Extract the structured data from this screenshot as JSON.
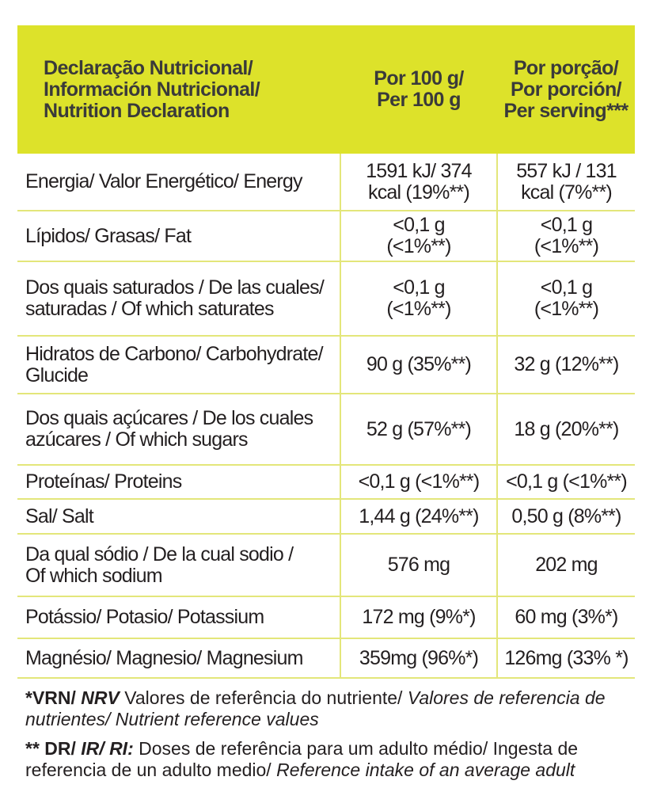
{
  "header": {
    "col1": [
      "Declaração Nutricional/",
      "Información Nutricional/",
      "Nutrition Declaration"
    ],
    "col2": [
      "Por 100 g/",
      "Per 100 g"
    ],
    "col3": [
      "Por porção/",
      "Por porción/",
      "Per serving***"
    ]
  },
  "rows": [
    {
      "label": [
        "Energia/ Valor Energético/ Energy"
      ],
      "per100": [
        "1591 kJ/ 374",
        "kcal (19%**)"
      ],
      "serving": [
        "557 kJ / 131",
        "kcal (7%**)"
      ]
    },
    {
      "label": [
        "Lípidos/ Grasas/ Fat"
      ],
      "per100": [
        "<0,1 g",
        "(<1%**)"
      ],
      "serving": [
        "<0,1 g",
        "(<1%**)"
      ]
    },
    {
      "label": [
        "Dos quais saturados / De las cuales/",
        "saturadas / Of which saturates"
      ],
      "per100": [
        "<0,1 g",
        "(<1%**)"
      ],
      "serving": [
        "<0,1 g",
        "(<1%**)"
      ]
    },
    {
      "label": [
        "Hidratos de Carbono/ Carbohydrate/",
        "Glucide"
      ],
      "per100": [
        "90 g (35%**)"
      ],
      "serving": [
        "32 g (12%**)"
      ]
    },
    {
      "label": [
        "Dos quais açúcares / De los cuales",
        "azúcares / Of which sugars"
      ],
      "per100": [
        "52 g (57%**)"
      ],
      "serving": [
        "18 g (20%**)"
      ]
    },
    {
      "label": [
        "Proteínas/ Proteins"
      ],
      "per100": [
        "<0,1 g (<1%**)"
      ],
      "serving": [
        "<0,1 g (<1%**)"
      ]
    },
    {
      "label": [
        "Sal/ Salt"
      ],
      "per100": [
        "1,44 g (24%**)"
      ],
      "serving": [
        "0,50 g (8%**)"
      ]
    },
    {
      "label": [
        "Da qual sódio / De la cual sodio /",
        "Of which sodium"
      ],
      "per100": [
        "576 mg"
      ],
      "serving": [
        "202 mg"
      ]
    },
    {
      "label": [
        "Potássio/ Potasio/ Potassium"
      ],
      "per100": [
        "172 mg (9%*)"
      ],
      "serving": [
        "60 mg (3%*)"
      ]
    },
    {
      "label": [
        "Magnésio/ Magnesio/ Magnesium"
      ],
      "per100": [
        "359mg (96%*)"
      ],
      "serving": [
        "126mg (33% *)"
      ]
    }
  ],
  "notes": {
    "vrn": {
      "key_a": "*VRN/",
      "key_b": "NRV",
      "text_a": "Valores de referência do nutriente/",
      "text_b": "Valores de referencia de nutrientes/ Nutrient reference values"
    },
    "dr": {
      "key_a": "** DR/",
      "key_b": "IR/ RI:",
      "text_a": "Doses de referência para um adulto médio/ Ingesta de referencia de un adulto medio/",
      "text_b": "Reference intake of an average adult"
    }
  },
  "colors": {
    "header_bg": "#dde22a",
    "grid": "#e3e67a",
    "text": "#231f20"
  }
}
